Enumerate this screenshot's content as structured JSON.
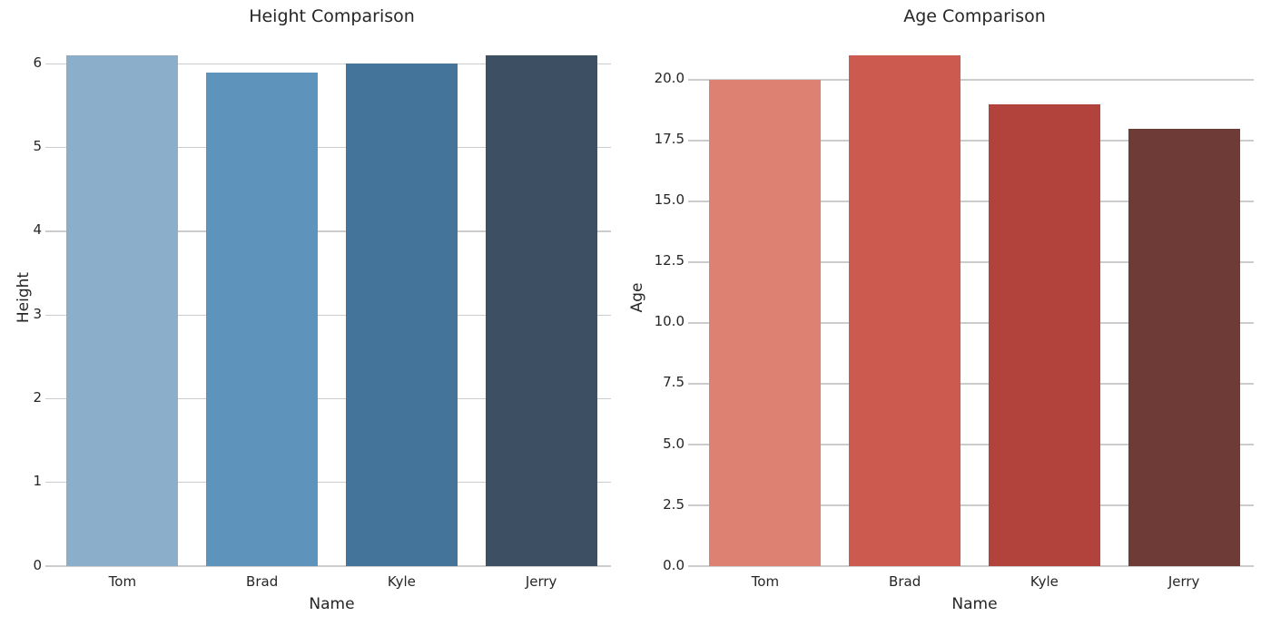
{
  "figure": {
    "background": "#ffffff",
    "grid_color": "#cccccc",
    "text_color": "#262626"
  },
  "chart_data": [
    {
      "type": "bar",
      "title": "Height Comparison",
      "xlabel": "Name",
      "ylabel": "Height",
      "categories": [
        "Tom",
        "Brad",
        "Kyle",
        "Jerry"
      ],
      "values": [
        6.1,
        5.9,
        6.0,
        6.1
      ],
      "bar_colors": [
        "#8bafcb",
        "#5e93bb",
        "#45749a",
        "#3d4f63"
      ],
      "ylim": [
        0,
        6.405
      ],
      "yticks": [
        0,
        1,
        2,
        3,
        4,
        5,
        6
      ],
      "ytick_labels": [
        "0",
        "1",
        "2",
        "3",
        "4",
        "5",
        "6"
      ],
      "grid": true,
      "legend_position": "none",
      "bar_rel_width": 0.8
    },
    {
      "type": "bar",
      "title": "Age Comparison",
      "xlabel": "Name",
      "ylabel": "Age",
      "categories": [
        "Tom",
        "Brad",
        "Kyle",
        "Jerry"
      ],
      "values": [
        20,
        21,
        19,
        18
      ],
      "bar_colors": [
        "#dd8172",
        "#cd5a4f",
        "#b2433c",
        "#6f3b37"
      ],
      "ylim": [
        0,
        22.05
      ],
      "yticks": [
        0,
        2.5,
        5,
        7.5,
        10,
        12.5,
        15,
        17.5,
        20
      ],
      "ytick_labels": [
        "0.0",
        "2.5",
        "5.0",
        "7.5",
        "10.0",
        "12.5",
        "15.0",
        "17.5",
        "20.0"
      ],
      "grid": true,
      "legend_position": "none",
      "bar_rel_width": 0.8
    }
  ]
}
